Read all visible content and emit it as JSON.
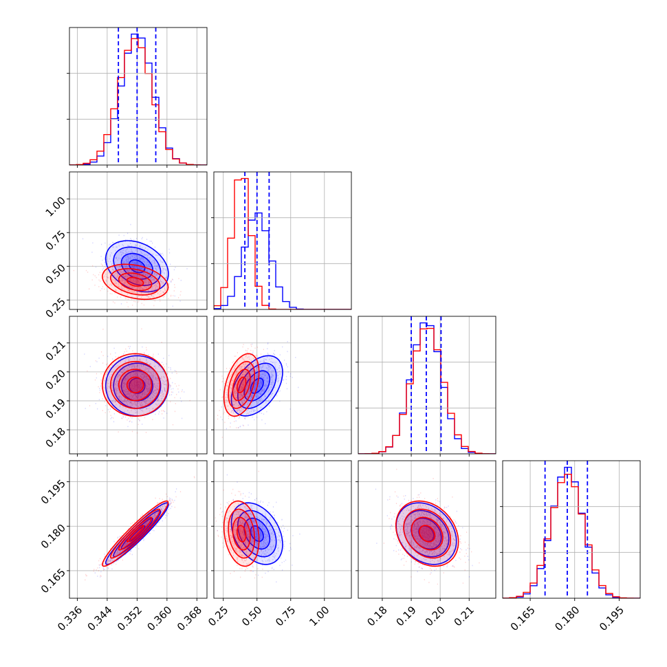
{
  "colors": {
    "series_a": "#0000ff",
    "series_b": "#ff0000",
    "grid": "#b0b0b0",
    "frame": "#000000"
  },
  "chart_data": {
    "type": "corner",
    "grid": true,
    "params": [
      {
        "range": [
          0.3339,
          0.3707
        ],
        "ticks": [
          0.336,
          0.344,
          0.352,
          0.36,
          0.368
        ],
        "tick_labels": [
          "0.336",
          "0.344",
          "0.352",
          "0.360",
          "0.368"
        ],
        "series_a": {
          "mean": 0.352,
          "std": 0.0042
        },
        "series_b": {
          "mean": 0.3515,
          "std": 0.0044
        },
        "quantiles": [
          0.347,
          0.352,
          0.357
        ]
      },
      {
        "range": [
          0.18,
          1.2
        ],
        "ticks": [
          0.25,
          0.5,
          0.75,
          1.0
        ],
        "tick_labels": [
          "0.25",
          "0.50",
          "0.75",
          "1.00"
        ],
        "series_a": {
          "mean": 0.5,
          "std": 0.095
        },
        "series_b": {
          "mean": 0.385,
          "std": 0.065
        },
        "quantiles": [
          0.41,
          0.5,
          0.59
        ]
      },
      {
        "range": [
          0.1717,
          0.2192
        ],
        "ticks": [
          0.18,
          0.19,
          0.2,
          0.21
        ],
        "tick_labels": [
          "0.18",
          "0.19",
          "0.20",
          "0.21"
        ],
        "series_a": {
          "mean": 0.1952,
          "std": 0.0052
        },
        "series_b": {
          "mean": 0.1955,
          "std": 0.0054
        },
        "quantiles": [
          0.19,
          0.1952,
          0.2003
        ]
      },
      {
        "range": [
          0.1557,
          0.2021
        ],
        "ticks": [
          0.165,
          0.18,
          0.195
        ],
        "tick_labels": [
          "0.165",
          "0.180",
          "0.195"
        ],
        "series_a": {
          "mean": 0.1775,
          "std": 0.0052
        },
        "series_b": {
          "mean": 0.1775,
          "std": 0.0055
        },
        "quantiles": [
          0.17,
          0.1775,
          0.1843
        ]
      }
    ],
    "correlation_a": [
      [
        1.0,
        -0.3,
        0.0,
        0.95
      ],
      [
        -0.3,
        1.0,
        0.45,
        -0.35
      ],
      [
        0.0,
        0.45,
        1.0,
        -0.25
      ],
      [
        0.95,
        -0.35,
        -0.25,
        1.0
      ]
    ],
    "correlation_b": [
      [
        1.0,
        -0.3,
        0.0,
        0.95
      ],
      [
        -0.3,
        1.0,
        0.4,
        -0.2
      ],
      [
        0.0,
        0.4,
        1.0,
        -0.25
      ],
      [
        0.95,
        -0.2,
        -0.25,
        1.0
      ]
    ],
    "contour_levels": [
      0.5,
      1.0,
      1.5,
      2.0
    ],
    "histogram_bins": 20
  }
}
